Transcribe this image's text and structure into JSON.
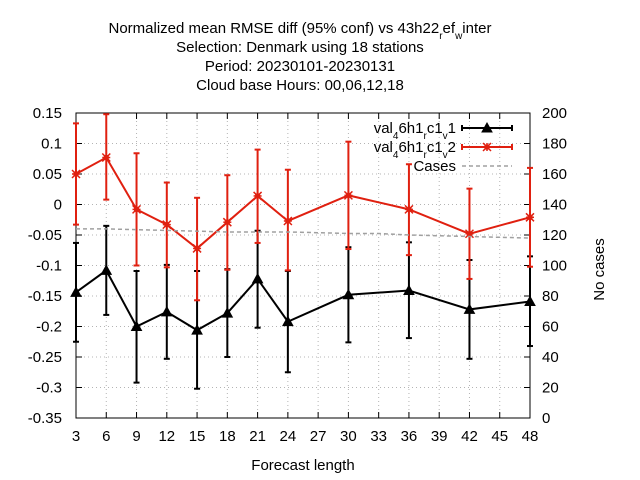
{
  "chart_data": {
    "type": "line",
    "title_lines": [
      "Normalized mean RMSE diff (95% conf) vs 43h22_ref_winter",
      "Selection: Denmark using    18 stations",
      "Period: 20230101-20230131",
      "Cloud base   Hours:  00,06,12,18"
    ],
    "xlabel": "Forecast length",
    "ylabel": "",
    "y2label": "No cases",
    "xlim": [
      3,
      48
    ],
    "ylim": [
      -0.35,
      0.15
    ],
    "y2lim": [
      0,
      200
    ],
    "xticks": [
      3,
      6,
      9,
      12,
      15,
      18,
      21,
      24,
      27,
      30,
      33,
      36,
      39,
      42,
      45,
      48
    ],
    "yticks": [
      -0.35,
      -0.3,
      -0.25,
      -0.2,
      -0.15,
      -0.1,
      -0.05,
      0,
      0.05,
      0.1,
      0.15
    ],
    "ytick_labels": [
      "-0.35",
      "-0.3",
      "-0.25",
      "-0.2",
      "-0.15",
      "-0.1",
      "-0.05",
      "0",
      "0.05",
      "0.1",
      "0.15"
    ],
    "y2ticks": [
      0,
      20,
      40,
      60,
      80,
      100,
      120,
      140,
      160,
      180,
      200
    ],
    "grid": true,
    "legend_position": "top-right",
    "series": [
      {
        "name": "val_46h1_rc1_v1",
        "color": "#000000",
        "marker": "triangle",
        "axis": "y",
        "x": [
          3,
          6,
          9,
          12,
          15,
          18,
          21,
          24,
          30,
          36,
          42,
          48
        ],
        "values": [
          -0.144,
          -0.108,
          -0.2,
          -0.176,
          -0.206,
          -0.178,
          -0.122,
          -0.192,
          -0.148,
          -0.141,
          -0.172,
          -0.159
        ],
        "err_low": [
          -0.225,
          -0.181,
          -0.292,
          -0.253,
          -0.302,
          -0.25,
          -0.202,
          -0.275,
          -0.226,
          -0.219,
          -0.253,
          -0.232
        ],
        "err_high": [
          -0.063,
          -0.035,
          -0.109,
          -0.099,
          -0.109,
          -0.106,
          -0.043,
          -0.109,
          -0.07,
          -0.062,
          -0.091,
          -0.085
        ]
      },
      {
        "name": "val_46h1_rc1_v2",
        "color": "#e02010",
        "marker": "asterisk",
        "axis": "y",
        "x": [
          3,
          6,
          9,
          12,
          15,
          18,
          21,
          24,
          30,
          36,
          42,
          48
        ],
        "values": [
          0.05,
          0.077,
          -0.008,
          -0.033,
          -0.072,
          -0.029,
          0.014,
          -0.027,
          0.015,
          -0.008,
          -0.048,
          -0.021
        ],
        "err_low": [
          -0.033,
          0.008,
          -0.1,
          -0.103,
          -0.157,
          -0.107,
          -0.063,
          -0.108,
          -0.073,
          -0.083,
          -0.122,
          -0.102
        ],
        "err_high": [
          0.133,
          0.148,
          0.084,
          0.036,
          0.011,
          0.048,
          0.09,
          0.057,
          0.103,
          0.066,
          0.026,
          0.06
        ]
      },
      {
        "name": "Cases",
        "color": "#a0a0a0",
        "style": "dashed",
        "axis": "y2",
        "x": [
          3,
          6,
          9,
          12,
          15,
          18,
          21,
          24,
          27,
          30,
          33,
          36,
          39,
          42,
          45,
          48
        ],
        "values": [
          124,
          124,
          123.5,
          123,
          122.5,
          122,
          122,
          122,
          121.5,
          121,
          121,
          120,
          119.5,
          119,
          118.5,
          118
        ]
      }
    ]
  }
}
